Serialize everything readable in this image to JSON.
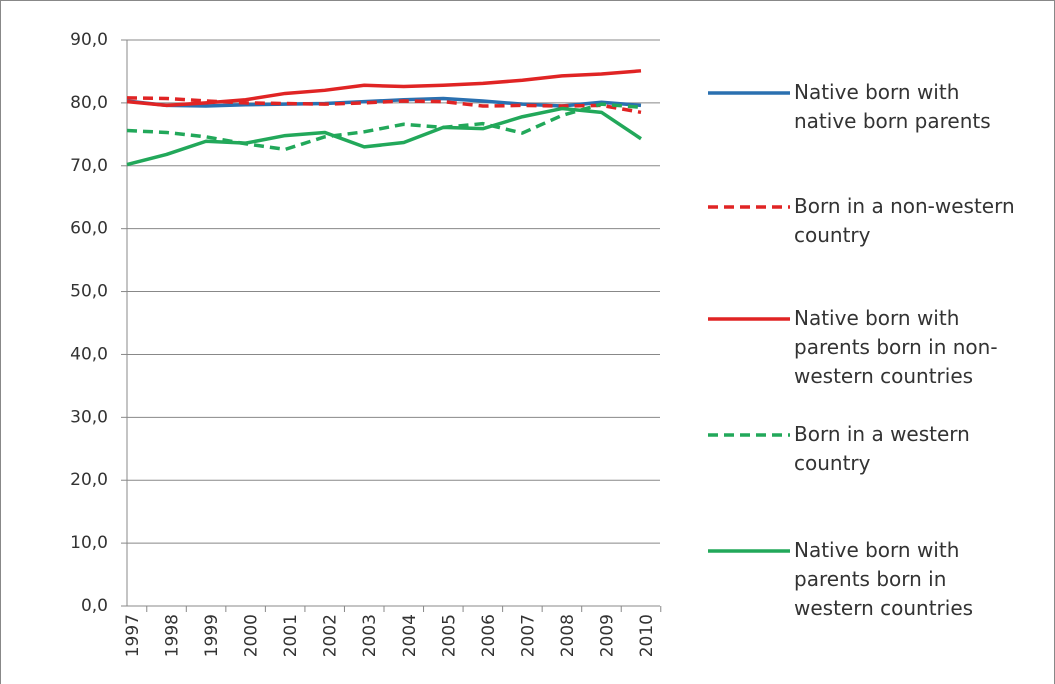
{
  "chart_data": {
    "type": "line",
    "categories": [
      "1997",
      "1998",
      "1999",
      "2000",
      "2001",
      "2002",
      "2003",
      "2004",
      "2005",
      "2006",
      "2007",
      "2008",
      "2009",
      "2010"
    ],
    "ylim": [
      0,
      90
    ],
    "yticks": [
      {
        "value": 0,
        "label": "0,0"
      },
      {
        "value": 10,
        "label": "10,0"
      },
      {
        "value": 20,
        "label": "20,0"
      },
      {
        "value": 30,
        "label": "30,0"
      },
      {
        "value": 40,
        "label": "40,0"
      },
      {
        "value": 50,
        "label": "50,0"
      },
      {
        "value": 60,
        "label": "60,0"
      },
      {
        "value": 70,
        "label": "70,0"
      },
      {
        "value": 80,
        "label": "80,0"
      },
      {
        "value": 90,
        "label": "90,0"
      }
    ],
    "grid": true,
    "legend": "right",
    "series": [
      {
        "name": "Native born with native born parents",
        "color": "#2a70b0",
        "style": "solid",
        "values": [
          80.3,
          79.6,
          79.5,
          79.7,
          79.8,
          79.9,
          80.2,
          80.5,
          80.7,
          80.3,
          79.8,
          79.5,
          80.1,
          79.6
        ]
      },
      {
        "name": "Born in a non-western country",
        "color": "#e02424",
        "style": "dashed",
        "values": [
          80.8,
          80.7,
          80.3,
          80.0,
          79.9,
          79.8,
          80.0,
          80.3,
          80.2,
          79.5,
          79.6,
          79.5,
          79.6,
          78.5
        ]
      },
      {
        "name": "Native born with parents born in non-western countries",
        "color": "#e02424",
        "style": "solid",
        "values": [
          80.2,
          79.6,
          80.0,
          80.5,
          81.5,
          82.0,
          82.8,
          82.6,
          82.8,
          83.1,
          83.6,
          84.3,
          84.6,
          85.1
        ]
      },
      {
        "name": "Born in a western country",
        "color": "#22a85a",
        "style": "dashed",
        "values": [
          75.6,
          75.3,
          74.6,
          73.5,
          72.6,
          74.6,
          75.4,
          76.6,
          76.1,
          76.7,
          75.2,
          78.0,
          79.8,
          79.3
        ]
      },
      {
        "name": "Native born with parents born in western countries",
        "color": "#22a85a",
        "style": "solid",
        "values": [
          70.2,
          71.8,
          73.9,
          73.6,
          74.8,
          75.3,
          73.0,
          73.7,
          76.1,
          75.9,
          77.8,
          79.1,
          78.5,
          74.3
        ]
      }
    ]
  }
}
